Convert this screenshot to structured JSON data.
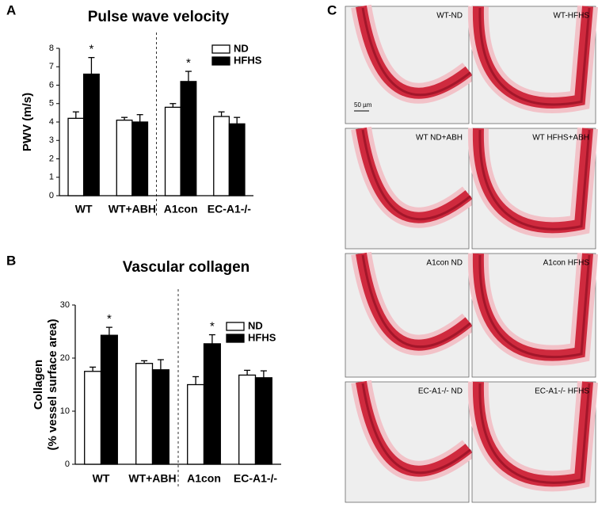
{
  "panel_labels": [
    "A",
    "B",
    "C"
  ],
  "chart_data": [
    {
      "type": "bar",
      "title": "Pulse wave velocity",
      "ylabel": [
        "PWV (m/s)"
      ],
      "categories": [
        "WT",
        "WT+ABH",
        "A1con",
        "EC-A1-/-"
      ],
      "series": [
        {
          "name": "ND",
          "color": "#ffffff",
          "values": [
            4.2,
            4.1,
            4.8,
            4.3
          ],
          "errors": [
            0.35,
            0.15,
            0.2,
            0.25
          ]
        },
        {
          "name": "HFHS",
          "color": "#000000",
          "values": [
            6.6,
            4.0,
            6.2,
            3.9
          ],
          "errors": [
            0.9,
            0.4,
            0.55,
            0.35
          ],
          "significance_labels": [
            "*",
            null,
            "*",
            null
          ]
        }
      ],
      "ylim": [
        0,
        8
      ],
      "yticks": [
        0,
        1,
        2,
        3,
        4,
        5,
        6,
        7,
        8
      ],
      "legend": "top-right"
    },
    {
      "type": "bar",
      "title": "Vascular collagen",
      "ylabel": [
        "Collagen",
        "(% vessel surface area)"
      ],
      "categories": [
        "WT",
        "WT+ABH",
        "A1con",
        "EC-A1-/-"
      ],
      "series": [
        {
          "name": "ND",
          "color": "#ffffff",
          "values": [
            17.5,
            19.0,
            15.0,
            16.8
          ],
          "errors": [
            0.8,
            0.5,
            1.5,
            0.9
          ]
        },
        {
          "name": "HFHS",
          "color": "#000000",
          "values": [
            24.3,
            17.8,
            22.7,
            16.3
          ],
          "errors": [
            1.5,
            1.9,
            1.7,
            1.3
          ],
          "significance_labels": [
            "*",
            null,
            "*",
            null
          ]
        }
      ],
      "ylim": [
        0,
        30
      ],
      "yticks": [
        0,
        10,
        20,
        30
      ],
      "legend": "top-right"
    }
  ],
  "micrographs": {
    "labels": [
      "WT-ND",
      "WT-HFHS",
      "WT ND+ABH",
      "WT HFHS+ABH",
      "A1con ND",
      "A1con HFHS",
      "EC-A1-/- ND",
      "EC-A1-/- HFHS"
    ],
    "scale_bar": "50 µm"
  }
}
